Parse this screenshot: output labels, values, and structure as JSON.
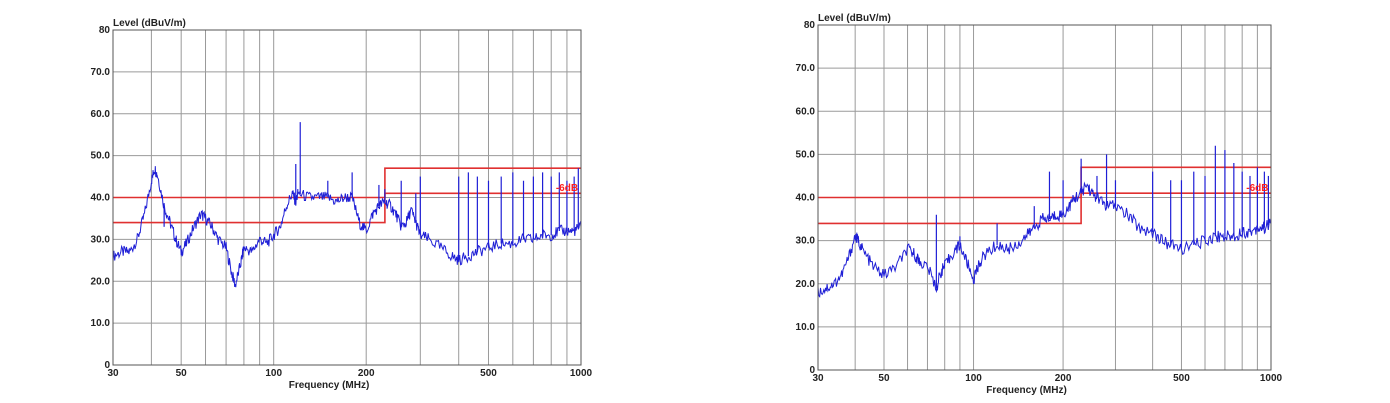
{
  "chart_data": [
    {
      "type": "line",
      "ylabel": "Level (dBuV/m)",
      "xlabel": "Frequency (MHz)",
      "x_scale": "log",
      "xlim": [
        30,
        1000
      ],
      "ylim": [
        0,
        80
      ],
      "grid": true,
      "y_ticks": [
        "0",
        "10.0",
        "20.0",
        "30.0",
        "40.0",
        "50.0",
        "60.0",
        "70.0",
        "80"
      ],
      "y_tick_values": [
        0,
        10,
        20,
        30,
        40,
        50,
        60,
        70,
        80
      ],
      "x_ticks": [
        "30",
        "50",
        "100",
        "200",
        "500",
        "1000"
      ],
      "x_tick_values": [
        30,
        50,
        100,
        200,
        500,
        1000
      ],
      "limit_lines": [
        {
          "color": "#e03030",
          "segments": [
            [
              30,
              40
            ],
            [
              230,
              40
            ],
            [
              230,
              47
            ],
            [
              1000,
              47
            ]
          ]
        },
        {
          "color": "#e03030",
          "segments": [
            [
              30,
              34
            ],
            [
              230,
              34
            ],
            [
              230,
              41
            ],
            [
              1000,
              41
            ]
          ]
        }
      ],
      "annotation": {
        "text": "-6dB",
        "x": 900,
        "y": 41.5
      },
      "series": [
        {
          "color": "#1f1fd6",
          "points": [
            [
              30,
              26
            ],
            [
              32,
              27
            ],
            [
              34,
              27
            ],
            [
              36,
              30
            ],
            [
              38,
              36
            ],
            [
              40,
              44
            ],
            [
              41,
              47
            ],
            [
              42,
              45
            ],
            [
              44,
              38
            ],
            [
              46,
              34
            ],
            [
              48,
              30
            ],
            [
              50,
              27
            ],
            [
              52,
              29
            ],
            [
              55,
              33
            ],
            [
              58,
              36
            ],
            [
              60,
              35
            ],
            [
              63,
              33
            ],
            [
              66,
              30
            ],
            [
              70,
              28
            ],
            [
              73,
              22
            ],
            [
              75,
              19
            ],
            [
              78,
              24
            ],
            [
              80,
              28
            ],
            [
              85,
              27
            ],
            [
              90,
              30
            ],
            [
              95,
              29
            ],
            [
              100,
              31
            ],
            [
              105,
              33
            ],
            [
              110,
              38
            ],
            [
              115,
              41
            ],
            [
              118,
              39
            ],
            [
              120,
              41
            ],
            [
              130,
              40
            ],
            [
              140,
              40
            ],
            [
              150,
              40
            ],
            [
              160,
              39
            ],
            [
              170,
              40
            ],
            [
              180,
              40
            ],
            [
              190,
              34
            ],
            [
              200,
              32
            ],
            [
              210,
              36
            ],
            [
              220,
              38
            ],
            [
              230,
              39
            ],
            [
              240,
              38
            ],
            [
              250,
              36
            ],
            [
              260,
              33
            ],
            [
              270,
              34
            ],
            [
              280,
              37
            ],
            [
              290,
              34
            ],
            [
              300,
              31
            ],
            [
              320,
              30
            ],
            [
              350,
              28
            ],
            [
              380,
              26
            ],
            [
              400,
              25
            ],
            [
              430,
              26
            ],
            [
              460,
              27
            ],
            [
              500,
              28
            ],
            [
              550,
              29
            ],
            [
              600,
              29
            ],
            [
              650,
              30
            ],
            [
              700,
              30
            ],
            [
              750,
              31
            ],
            [
              800,
              31
            ],
            [
              850,
              32
            ],
            [
              900,
              32
            ],
            [
              950,
              32
            ],
            [
              1000,
              33
            ]
          ],
          "spikes": [
            [
              44,
              33
            ],
            [
              118,
              48
            ],
            [
              122,
              58
            ],
            [
              150,
              44
            ],
            [
              180,
              46
            ],
            [
              220,
              43
            ],
            [
              230,
              42
            ],
            [
              260,
              44
            ],
            [
              290,
              41
            ],
            [
              300,
              45
            ],
            [
              400,
              45
            ],
            [
              430,
              46
            ],
            [
              460,
              45
            ],
            [
              500,
              44
            ],
            [
              550,
              45
            ],
            [
              600,
              46
            ],
            [
              650,
              44
            ],
            [
              700,
              45
            ],
            [
              750,
              46
            ],
            [
              800,
              45
            ],
            [
              850,
              46
            ],
            [
              900,
              44
            ],
            [
              950,
              45
            ],
            [
              980,
              47
            ]
          ]
        }
      ]
    },
    {
      "type": "line",
      "ylabel": "Level (dBuV/m)",
      "xlabel": "Frequency (MHz)",
      "x_scale": "log",
      "xlim": [
        30,
        1000
      ],
      "ylim": [
        0,
        80
      ],
      "grid": true,
      "y_ticks": [
        "0",
        "10.0",
        "20.0",
        "30.0",
        "40.0",
        "50.0",
        "60.0",
        "70.0",
        "80"
      ],
      "y_tick_values": [
        0,
        10,
        20,
        30,
        40,
        50,
        60,
        70,
        80
      ],
      "x_ticks": [
        "30",
        "50",
        "100",
        "200",
        "500",
        "1000"
      ],
      "x_tick_values": [
        30,
        50,
        100,
        200,
        500,
        1000
      ],
      "limit_lines": [
        {
          "color": "#e03030",
          "segments": [
            [
              30,
              40
            ],
            [
              230,
              40
            ],
            [
              230,
              47
            ],
            [
              1000,
              47
            ]
          ]
        },
        {
          "color": "#e03030",
          "segments": [
            [
              30,
              34
            ],
            [
              230,
              34
            ],
            [
              230,
              41
            ],
            [
              1000,
              41
            ]
          ]
        }
      ],
      "annotation": {
        "text": "-6dB",
        "x": 900,
        "y": 41.5
      },
      "series": [
        {
          "color": "#1f1fd6",
          "points": [
            [
              30,
              18
            ],
            [
              32,
              19
            ],
            [
              34,
              20
            ],
            [
              36,
              22
            ],
            [
              38,
              26
            ],
            [
              40,
              31
            ],
            [
              41,
              30
            ],
            [
              43,
              27
            ],
            [
              46,
              24
            ],
            [
              50,
              22
            ],
            [
              55,
              24
            ],
            [
              60,
              28
            ],
            [
              63,
              27
            ],
            [
              66,
              25
            ],
            [
              70,
              24
            ],
            [
              75,
              19
            ],
            [
              78,
              23
            ],
            [
              80,
              24
            ],
            [
              85,
              27
            ],
            [
              90,
              29
            ],
            [
              95,
              25
            ],
            [
              100,
              21
            ],
            [
              105,
              25
            ],
            [
              110,
              27
            ],
            [
              120,
              29
            ],
            [
              130,
              28
            ],
            [
              140,
              29
            ],
            [
              150,
              31
            ],
            [
              160,
              33
            ],
            [
              170,
              35
            ],
            [
              180,
              35
            ],
            [
              190,
              36
            ],
            [
              200,
              36
            ],
            [
              210,
              38
            ],
            [
              220,
              40
            ],
            [
              230,
              41
            ],
            [
              240,
              43
            ],
            [
              250,
              41
            ],
            [
              260,
              40
            ],
            [
              280,
              38
            ],
            [
              300,
              38
            ],
            [
              330,
              36
            ],
            [
              360,
              33
            ],
            [
              400,
              32
            ],
            [
              430,
              30
            ],
            [
              460,
              29
            ],
            [
              500,
              28
            ],
            [
              550,
              29
            ],
            [
              600,
              30
            ],
            [
              650,
              31
            ],
            [
              700,
              31
            ],
            [
              750,
              31
            ],
            [
              800,
              32
            ],
            [
              850,
              32
            ],
            [
              900,
              33
            ],
            [
              950,
              33
            ],
            [
              1000,
              34
            ]
          ],
          "spikes": [
            [
              75,
              36
            ],
            [
              90,
              31
            ],
            [
              120,
              34
            ],
            [
              160,
              38
            ],
            [
              180,
              46
            ],
            [
              200,
              44
            ],
            [
              230,
              49
            ],
            [
              260,
              45
            ],
            [
              280,
              50
            ],
            [
              300,
              44
            ],
            [
              400,
              46
            ],
            [
              460,
              44
            ],
            [
              500,
              44
            ],
            [
              550,
              46
            ],
            [
              600,
              45
            ],
            [
              650,
              52
            ],
            [
              700,
              51
            ],
            [
              750,
              48
            ],
            [
              800,
              46
            ],
            [
              850,
              45
            ],
            [
              900,
              47
            ],
            [
              950,
              46
            ],
            [
              980,
              45
            ]
          ]
        }
      ]
    }
  ]
}
